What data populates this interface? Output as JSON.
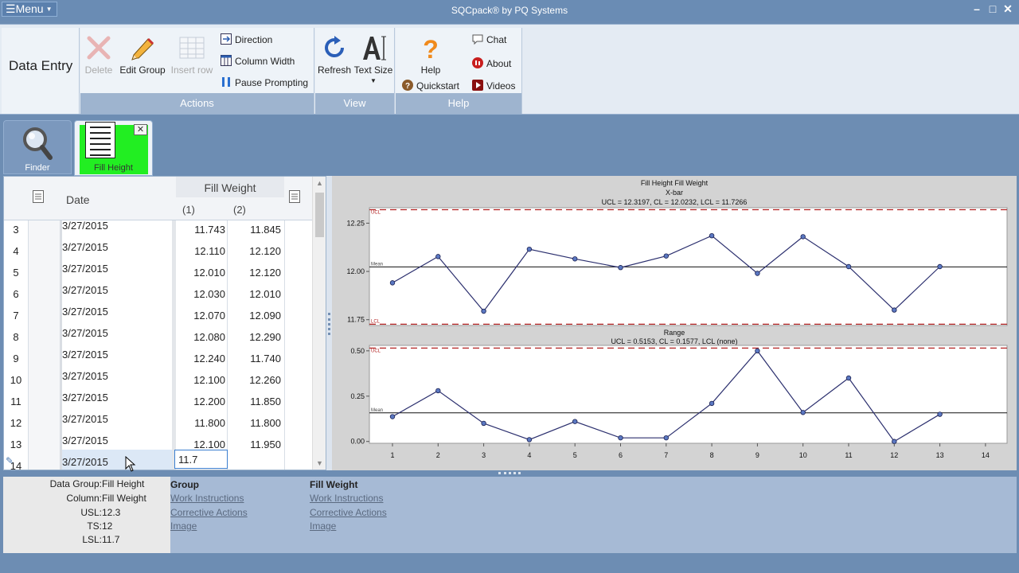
{
  "window": {
    "title": "SQCpack® by PQ Systems",
    "menu_label": "Menu",
    "minimize": "–",
    "maximize": "□",
    "close": "✕"
  },
  "ribbon": {
    "section_title": "Data Entry",
    "actions": {
      "group_label": "Actions",
      "delete": "Delete",
      "edit_group": "Edit Group",
      "insert_row": "Insert row",
      "direction": "Direction",
      "column_width": "Column Width",
      "pause_prompting": "Pause Prompting"
    },
    "view": {
      "group_label": "View",
      "refresh": "Refresh",
      "text_size": "Text Size"
    },
    "help": {
      "group_label": "Help",
      "help": "Help",
      "quickstart": "Quickstart",
      "chat": "Chat",
      "about": "About",
      "videos": "Videos"
    }
  },
  "tabs": {
    "finder": "Finder",
    "active": "Fill Height"
  },
  "grid": {
    "date_header": "Date",
    "group_header": "Fill Weight",
    "sub1": "(1)",
    "sub2": "(2)",
    "rows": [
      {
        "n": "3",
        "date": "3/27/2015",
        "v1": "11.743",
        "v2": "11.845"
      },
      {
        "n": "4",
        "date": "3/27/2015",
        "v1": "12.110",
        "v2": "12.120"
      },
      {
        "n": "5",
        "date": "3/27/2015",
        "v1": "12.010",
        "v2": "12.120"
      },
      {
        "n": "6",
        "date": "3/27/2015",
        "v1": "12.030",
        "v2": "12.010"
      },
      {
        "n": "7",
        "date": "3/27/2015",
        "v1": "12.070",
        "v2": "12.090"
      },
      {
        "n": "8",
        "date": "3/27/2015",
        "v1": "12.080",
        "v2": "12.290"
      },
      {
        "n": "9",
        "date": "3/27/2015",
        "v1": "12.240",
        "v2": "11.740"
      },
      {
        "n": "10",
        "date": "3/27/2015",
        "v1": "12.100",
        "v2": "12.260"
      },
      {
        "n": "11",
        "date": "3/27/2015",
        "v1": "12.200",
        "v2": "11.850"
      },
      {
        "n": "12",
        "date": "3/27/2015",
        "v1": "11.800",
        "v2": "11.800"
      },
      {
        "n": "13",
        "date": "3/27/2015",
        "v1": "12.100",
        "v2": "11.950"
      },
      {
        "n": "14",
        "date": "3/27/2015",
        "v1": "",
        "v2": ""
      }
    ],
    "editing_value": "11.7"
  },
  "chart_data": [
    {
      "type": "line",
      "title": "Fill Height Fill Weight",
      "subtitle": "X-bar",
      "limits_text": "UCL = 12.3197, CL = 12.0232, LCL = 11.7266",
      "ucl": 12.3197,
      "cl": 12.0232,
      "lcl": 11.7266,
      "ucl_label": "UCL",
      "mean_label": "Mean",
      "lcl_label": "LCL",
      "ylim": [
        11.72,
        12.33
      ],
      "yticks": [
        "11.75",
        "12.00",
        "12.25"
      ],
      "ytick_values": [
        11.75,
        12.0,
        12.25
      ],
      "x": [
        1,
        2,
        3,
        4,
        5,
        6,
        7,
        8,
        9,
        10,
        11,
        12,
        13
      ],
      "values": [
        11.941,
        12.077,
        11.794,
        12.115,
        12.065,
        12.02,
        12.08,
        12.185,
        11.99,
        12.18,
        12.025,
        11.8,
        12.025
      ]
    },
    {
      "type": "line",
      "title": "Range",
      "limits_text": "UCL = 0.5153, CL = 0.1577, LCL (none)",
      "ucl": 0.5153,
      "cl": 0.1577,
      "ucl_label": "UCL",
      "mean_label": "Mean",
      "ylim": [
        -0.01,
        0.53
      ],
      "yticks": [
        "0.00",
        "0.25",
        "0.50"
      ],
      "ytick_values": [
        0,
        0.25,
        0.5
      ],
      "x": [
        1,
        2,
        3,
        4,
        5,
        6,
        7,
        8,
        9,
        10,
        11,
        12,
        13
      ],
      "xticks": [
        "1",
        "2",
        "3",
        "4",
        "5",
        "6",
        "7",
        "8",
        "9",
        "10",
        "11",
        "12",
        "13",
        "14"
      ],
      "values": [
        0.137,
        0.28,
        0.1,
        0.01,
        0.11,
        0.02,
        0.02,
        0.21,
        0.5,
        0.16,
        0.35,
        0.0,
        0.15
      ]
    }
  ],
  "info": {
    "data_group_label": "Data Group:",
    "data_group_value": "Fill Height",
    "column_label": "Column:",
    "column_value": "Fill Weight",
    "usl_label": "USL:",
    "usl_value": "12.3",
    "ts_label": "TS:",
    "ts_value": "12",
    "lsl_label": "LSL:",
    "lsl_value": "11.7",
    "group_title": "Group",
    "group_links": [
      "Work Instructions",
      "Corrective Actions",
      "Image"
    ],
    "column_title": "Fill Weight",
    "column_links": [
      "Work Instructions",
      "Corrective Actions",
      "Image"
    ]
  }
}
